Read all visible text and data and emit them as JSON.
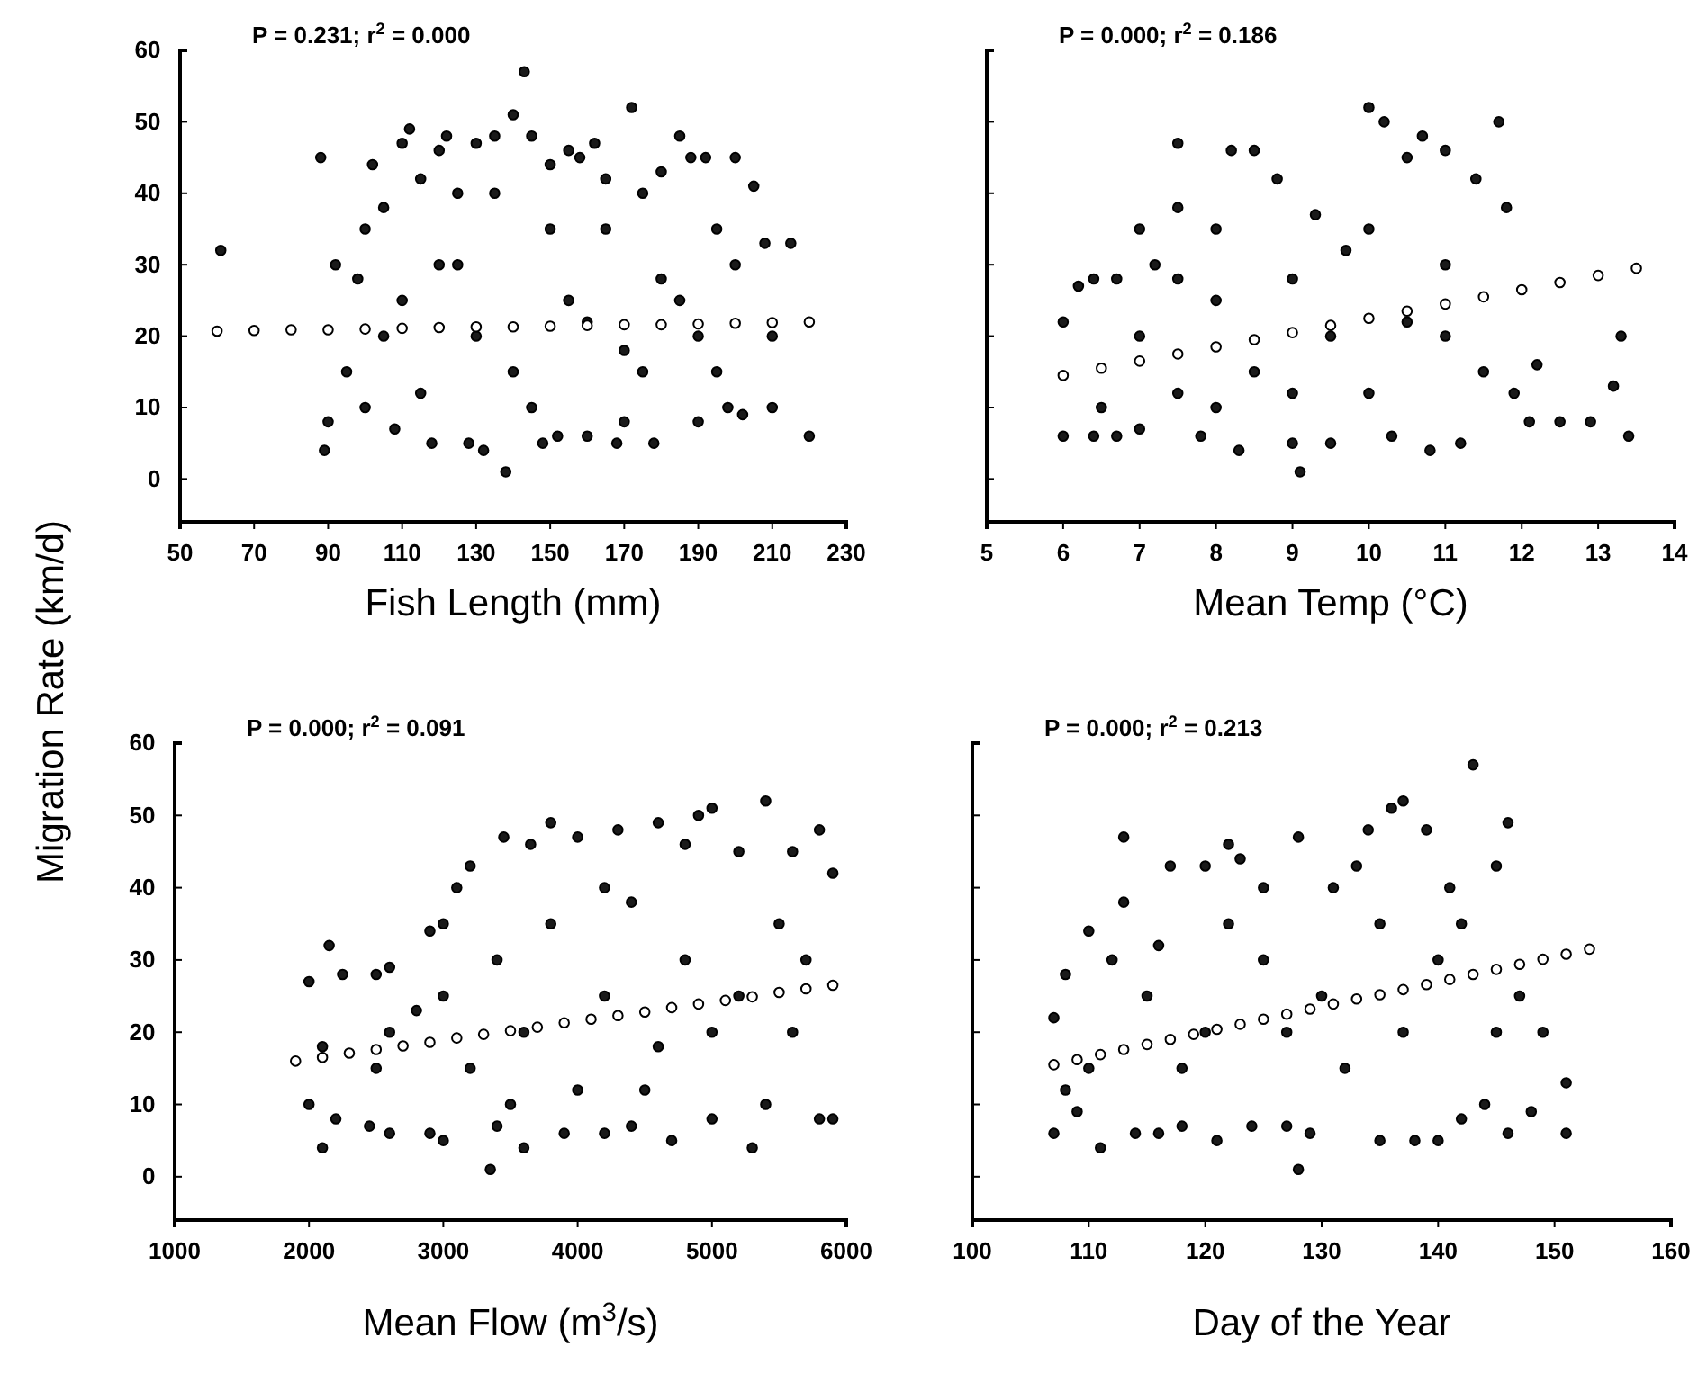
{
  "chart_data": [
    {
      "type": "scatter",
      "xlabel": "Fish Length (mm)",
      "ylabel": "Migration Rate (km/d)",
      "annotations": [
        "P = 0.231;  r$^{2}$ = 0.000"
      ],
      "marker": "circle",
      "xlim": [
        50,
        230
      ],
      "xticks": [
        50,
        70,
        90,
        110,
        130,
        150,
        170,
        190,
        210,
        230
      ],
      "ylim": [
        -6,
        60
      ],
      "yticks": [
        0,
        10,
        20,
        30,
        40,
        50,
        60
      ],
      "series": [
        {
          "color": "#1a1a1a",
          "x": [
            61,
            88,
            89,
            90,
            92,
            95,
            98,
            100,
            102,
            105,
            108,
            110,
            112,
            115,
            118,
            120,
            122,
            125,
            128,
            130,
            132,
            135,
            138,
            140,
            143,
            145,
            148,
            150,
            152,
            155,
            158,
            160,
            162,
            165,
            168,
            172,
            170,
            175,
            178,
            180,
            185,
            188,
            190,
            192,
            195,
            198,
            200,
            202,
            205,
            208,
            210,
            215,
            220,
            110,
            120,
            130,
            140,
            150,
            160,
            170,
            180,
            190,
            200,
            115,
            125,
            135,
            145,
            155,
            165,
            175,
            185,
            105,
            195,
            210,
            100
          ],
          "values": [
            32,
            45,
            4,
            8,
            30,
            15,
            28,
            10,
            44,
            38,
            7,
            47,
            49,
            42,
            5,
            46,
            48,
            40,
            5,
            47,
            4,
            48,
            1,
            51,
            57,
            48,
            5,
            44,
            6,
            46,
            45,
            6,
            47,
            42,
            5,
            52,
            8,
            40,
            5,
            43,
            48,
            45,
            8,
            45,
            35,
            10,
            45,
            9,
            41,
            33,
            10,
            33,
            6,
            25,
            30,
            20,
            15,
            35,
            22,
            18,
            28,
            20,
            30,
            12,
            30,
            40,
            10,
            25,
            35,
            15,
            25,
            20,
            15,
            20,
            35
          ]
        },
        {
          "type": "scatter",
          "color": "#ffffff",
          "x": [
            60,
            70,
            80,
            90,
            100,
            110,
            120,
            130,
            140,
            150,
            160,
            170,
            180,
            190,
            200,
            210,
            220
          ],
          "values": [
            20.7,
            20.8,
            20.9,
            20.9,
            21.0,
            21.1,
            21.2,
            21.3,
            21.3,
            21.4,
            21.5,
            21.6,
            21.6,
            21.7,
            21.8,
            21.9,
            22.0
          ]
        }
      ]
    },
    {
      "type": "scatter",
      "xlabel": "Mean Temp (°C)",
      "annotations": [
        "P = 0.000;  r$^{2}$ = 0.186"
      ],
      "marker": "circle",
      "tick_labels": "x",
      "xlim": [
        5,
        14
      ],
      "xticks": [
        5,
        6,
        7,
        8,
        9,
        10,
        11,
        12,
        13,
        14
      ],
      "ylim": [
        -6,
        60
      ],
      "yticks": [
        0,
        10,
        20,
        30,
        40,
        50,
        60
      ],
      "series": [
        {
          "color": "#1a1a1a",
          "x": [
            6,
            6,
            6.2,
            6.4,
            6.4,
            6.7,
            6.7,
            7,
            7,
            7.2,
            7.5,
            7.5,
            7.8,
            8,
            8.2,
            8.3,
            8.5,
            8.8,
            9,
            9.1,
            9.3,
            9.5,
            9.7,
            10,
            10.2,
            10.3,
            10.5,
            10.7,
            10.8,
            11,
            11.2,
            11.4,
            11.7,
            11.8,
            11.9,
            12.1,
            12.2,
            12.5,
            12.9,
            13.2,
            13.3,
            13.4,
            7,
            7.5,
            8,
            8.5,
            9,
            9.5,
            10,
            10.5,
            11,
            11.5,
            8,
            9,
            10,
            11,
            7.5,
            6.5
          ],
          "values": [
            6,
            22,
            27,
            6,
            28,
            6,
            28,
            7,
            35,
            30,
            47,
            38,
            6,
            35,
            46,
            4,
            46,
            42,
            5,
            1,
            37,
            5,
            32,
            52,
            50,
            6,
            45,
            48,
            4,
            46,
            5,
            42,
            50,
            38,
            12,
            8,
            16,
            8,
            8,
            13,
            20,
            6,
            20,
            12,
            25,
            15,
            28,
            20,
            35,
            22,
            30,
            15,
            10,
            12,
            12,
            20,
            28,
            10
          ]
        },
        {
          "type": "scatter",
          "color": "#ffffff",
          "x": [
            6,
            6.5,
            7,
            7.5,
            8,
            8.5,
            9,
            9.5,
            10,
            10.5,
            11,
            11.5,
            12,
            12.5,
            13,
            13.5
          ],
          "values": [
            14.5,
            15.5,
            16.5,
            17.5,
            18.5,
            19.5,
            20.5,
            21.5,
            22.5,
            23.5,
            24.5,
            25.5,
            26.5,
            27.5,
            28.5,
            29.5
          ]
        }
      ]
    },
    {
      "type": "scatter",
      "xlabel": "Mean Flow (m$^{3}$/s)",
      "annotations": [
        "P = 0.000;  r$^{2}$ = 0.091"
      ],
      "marker": "circle",
      "xlim": [
        1000,
        6000
      ],
      "xticks": [
        1000,
        2000,
        3000,
        4000,
        5000,
        6000
      ],
      "ylim": [
        -6,
        60
      ],
      "yticks": [
        0,
        10,
        20,
        30,
        40,
        50,
        60
      ],
      "series": [
        {
          "color": "#1a1a1a",
          "x": [
            2000,
            2000,
            2100,
            2150,
            2200,
            2250,
            2450,
            2500,
            2600,
            2600,
            2800,
            2900,
            2900,
            3000,
            3100,
            3200,
            3350,
            3400,
            3450,
            3600,
            3650,
            3800,
            3900,
            4000,
            4200,
            4300,
            4400,
            4600,
            4700,
            4800,
            4900,
            5000,
            5000,
            5200,
            5300,
            5400,
            5400,
            5600,
            5600,
            5800,
            5800,
            5900,
            5900,
            3000,
            3200,
            3400,
            3600,
            3800,
            4000,
            4200,
            4400,
            4600,
            4800,
            5000,
            2100,
            2500,
            2600,
            3000,
            3500,
            4200,
            4500,
            5200,
            5500,
            5700
          ],
          "values": [
            10,
            27,
            4,
            32,
            8,
            28,
            7,
            28,
            6,
            29,
            23,
            6,
            34,
            5,
            40,
            43,
            1,
            7,
            47,
            4,
            46,
            49,
            6,
            47,
            6,
            48,
            7,
            49,
            5,
            46,
            50,
            51,
            8,
            45,
            4,
            52,
            10,
            45,
            20,
            48,
            8,
            42,
            8,
            25,
            15,
            30,
            20,
            35,
            12,
            25,
            38,
            18,
            30,
            20,
            18,
            15,
            20,
            35,
            10,
            40,
            12,
            25,
            35,
            30
          ]
        },
        {
          "type": "scatter",
          "color": "#ffffff",
          "x": [
            1900,
            2100,
            2300,
            2500,
            2700,
            2900,
            3100,
            3300,
            3500,
            3700,
            3900,
            4100,
            4300,
            4500,
            4700,
            4900,
            5100,
            5300,
            5500,
            5700,
            5900
          ],
          "values": [
            16.0,
            16.5,
            17.1,
            17.6,
            18.1,
            18.6,
            19.2,
            19.7,
            20.2,
            20.7,
            21.3,
            21.8,
            22.3,
            22.8,
            23.4,
            23.9,
            24.4,
            24.9,
            25.5,
            26.0,
            26.5
          ]
        }
      ]
    },
    {
      "type": "scatter",
      "xlabel": "Day of the Year",
      "annotations": [
        "P = 0.000;  r$^{2}$ = 0.213"
      ],
      "marker": "circle",
      "tick_labels": "x",
      "xlim": [
        100,
        160
      ],
      "xticks": [
        100,
        110,
        120,
        130,
        140,
        150,
        160
      ],
      "ylim": [
        -6,
        60
      ],
      "yticks": [
        0,
        10,
        20,
        30,
        40,
        50,
        60
      ],
      "series": [
        {
          "color": "#1a1a1a",
          "x": [
            107,
            107,
            108,
            109,
            110,
            111,
            113,
            113,
            114,
            116,
            117,
            118,
            120,
            121,
            122,
            123,
            124,
            125,
            127,
            128,
            128,
            129,
            131,
            133,
            134,
            135,
            136,
            137,
            138,
            139,
            140,
            141,
            142,
            143,
            144,
            145,
            146,
            146,
            147,
            148,
            149,
            151,
            151,
            110,
            115,
            120,
            125,
            130,
            135,
            140,
            145,
            112,
            118,
            122,
            127,
            132,
            137,
            142,
            108,
            116
          ],
          "values": [
            6,
            22,
            28,
            9,
            34,
            4,
            47,
            38,
            6,
            6,
            43,
            7,
            43,
            5,
            46,
            44,
            7,
            40,
            7,
            1,
            47,
            6,
            40,
            43,
            48,
            5,
            51,
            52,
            5,
            48,
            5,
            40,
            8,
            57,
            10,
            43,
            49,
            6,
            25,
            9,
            20,
            6,
            13,
            15,
            25,
            20,
            30,
            25,
            35,
            30,
            20,
            30,
            15,
            35,
            20,
            15,
            20,
            35,
            12,
            32
          ]
        },
        {
          "type": "scatter",
          "color": "#ffffff",
          "x": [
            107,
            109,
            111,
            113,
            115,
            117,
            119,
            121,
            123,
            125,
            127,
            129,
            131,
            133,
            135,
            137,
            139,
            141,
            143,
            145,
            147,
            149,
            151,
            153
          ],
          "values": [
            15.5,
            16.2,
            16.9,
            17.6,
            18.3,
            19.0,
            19.7,
            20.4,
            21.1,
            21.8,
            22.5,
            23.2,
            23.9,
            24.6,
            25.2,
            25.9,
            26.6,
            27.3,
            28.0,
            28.7,
            29.4,
            30.1,
            30.8,
            31.5
          ]
        }
      ]
    }
  ]
}
